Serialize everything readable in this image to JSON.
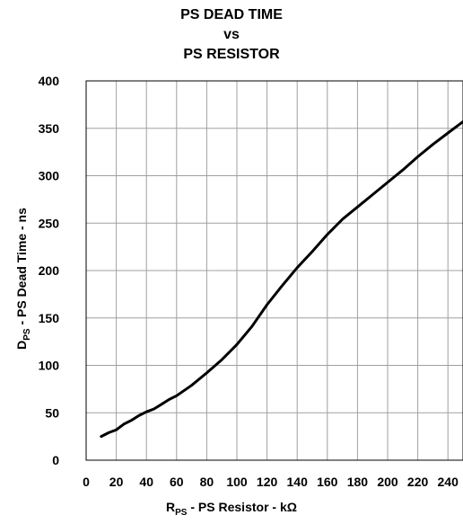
{
  "chart_data": {
    "type": "line",
    "title_lines": [
      "PS DEAD TIME",
      "vs",
      "PS RESISTOR"
    ],
    "xlabel": {
      "prefix": "R",
      "sub": "PS",
      "suffix": " - PS Resistor - kΩ"
    },
    "ylabel": {
      "prefix": "D",
      "sub": "PS",
      "suffix": " - PS Dead Time - ns"
    },
    "xlim": [
      0,
      250
    ],
    "ylim": [
      0,
      400
    ],
    "xticks": [
      0,
      20,
      40,
      60,
      80,
      100,
      120,
      140,
      160,
      180,
      200,
      220,
      240
    ],
    "yticks": [
      0,
      50,
      100,
      150,
      200,
      250,
      300,
      350,
      400
    ],
    "grid": true,
    "series": [
      {
        "color": "#000000",
        "x": [
          10,
          15,
          20,
          25,
          30,
          35,
          40,
          45,
          50,
          55,
          60,
          70,
          80,
          90,
          100,
          110,
          120,
          130,
          140,
          150,
          160,
          170,
          180,
          190,
          200,
          210,
          220,
          230,
          240,
          250
        ],
        "y": [
          25,
          29,
          32,
          38,
          42,
          47,
          51,
          54,
          59,
          64,
          68,
          79,
          92,
          106,
          122,
          141,
          164,
          184,
          203,
          220,
          238,
          254,
          267,
          280,
          293,
          306,
          320,
          333,
          345,
          357
        ]
      }
    ]
  }
}
